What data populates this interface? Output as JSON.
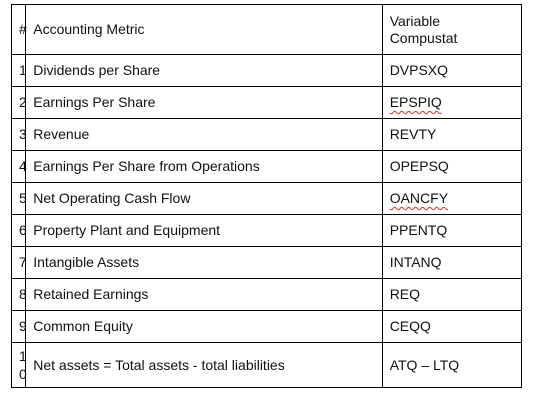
{
  "table": {
    "headers": {
      "num": "#",
      "metric": "Accounting Metric",
      "variable_line1": "Variable",
      "variable_line2": "Compustat"
    },
    "rows": [
      {
        "num": "1",
        "metric": "Dividends per Share",
        "variable": "DVPSXQ"
      },
      {
        "num": "2",
        "metric": "Earnings Per Share",
        "variable": "EPSPIQ"
      },
      {
        "num": "3",
        "metric": "Revenue",
        "variable": "REVTY"
      },
      {
        "num": "4",
        "metric": "Earnings Per Share from Operations",
        "variable": "OPEPSQ"
      },
      {
        "num": "5",
        "metric": "Net Operating Cash Flow",
        "variable": "OANCFY"
      },
      {
        "num": "6",
        "metric": "Property Plant and Equipment",
        "variable": "PPENTQ"
      },
      {
        "num": "7",
        "metric": "Intangible Assets",
        "variable": "INTANQ"
      },
      {
        "num": "8",
        "metric": "Retained Earnings",
        "variable": "REQ"
      },
      {
        "num": "9",
        "metric": "Common Equity",
        "variable": "CEQQ"
      },
      {
        "num": "10",
        "metric": "Net assets = Total assets - total liabilities",
        "variable": "ATQ – LTQ"
      }
    ]
  },
  "colors": {
    "border": "#000000",
    "text": "#111111",
    "spellcheck_underline": "#d0312d"
  }
}
